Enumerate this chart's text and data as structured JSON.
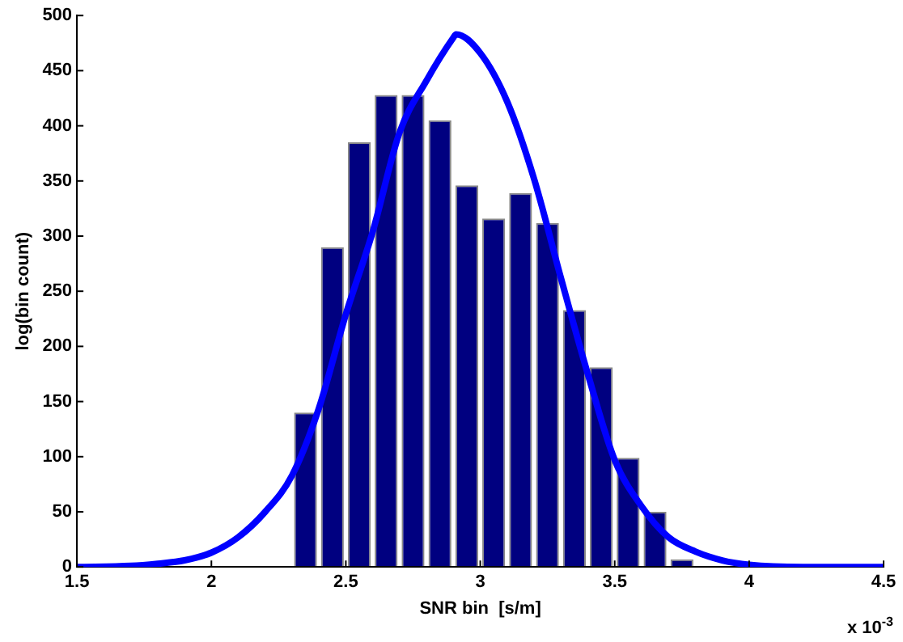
{
  "chart_data": {
    "type": "histogram",
    "xlabel": "SNR bin  [s/m]",
    "ylabel": "log(bin count)",
    "bins": [
      2.3,
      2.4,
      2.5,
      2.6,
      2.7,
      2.8,
      2.9,
      3.0,
      3.1,
      3.2,
      3.3,
      3.4,
      3.5,
      3.6,
      3.7,
      3.8
    ],
    "values": [
      140,
      290,
      385,
      428,
      428,
      405,
      346,
      316,
      339,
      312,
      233,
      181,
      99,
      50,
      7
    ],
    "color": "#000080",
    "series": [
      {
        "type": "line",
        "color": "#0000ff",
        "x": [
          1.5,
          1.7,
          1.8,
          1.9,
          2.0,
          2.1,
          2.2,
          2.3,
          2.4,
          2.5,
          2.6,
          2.7,
          2.8,
          2.9,
          2.91,
          3.0,
          3.1,
          3.2,
          3.3,
          3.4,
          3.5,
          3.6,
          3.7,
          3.8,
          3.9,
          4.0,
          4.2,
          4.5
        ],
        "values": [
          0,
          1,
          3,
          6,
          13,
          27,
          50,
          83,
          144,
          229,
          304,
          394,
          441,
          480,
          483,
          466,
          422,
          352,
          262,
          175,
          97,
          55,
          27,
          14,
          6,
          2,
          0,
          0
        ]
      }
    ],
    "xlim": [
      1.5,
      4.5
    ],
    "xticks": [
      1.5,
      2,
      2.5,
      3,
      3.5,
      4,
      4.5
    ],
    "ylim": [
      0,
      500
    ],
    "yticks": [
      0,
      50,
      100,
      150,
      200,
      250,
      300,
      350,
      400,
      450,
      500
    ],
    "grid": false,
    "legend": false,
    "marker": "none",
    "line_style": "solid",
    "annotations": [
      "x 10$^{-3}$"
    ]
  }
}
